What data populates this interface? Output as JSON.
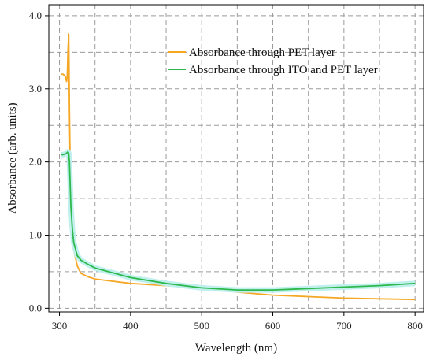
{
  "chart_data": {
    "type": "line",
    "title": "",
    "xlabel": "Wavelength (nm)",
    "ylabel": "Absorbance (arb. units)",
    "xlim": [
      285,
      812
    ],
    "ylim": [
      -0.05,
      4.15
    ],
    "x_ticks": [
      300,
      400,
      500,
      600,
      700,
      800
    ],
    "y_ticks": [
      0.0,
      1.0,
      2.0,
      3.0,
      4.0
    ],
    "x_tick_labels": [
      "300",
      "400",
      "500",
      "600",
      "700",
      "800"
    ],
    "y_tick_labels": [
      "0.0",
      "1.0",
      "2.0",
      "3.0",
      "4.0"
    ],
    "grid": true,
    "legend_position": "top-right",
    "series": [
      {
        "name": "Absorbance through PET layer",
        "color": "#f5a623",
        "x": [
          302,
          305,
          308,
          310,
          311,
          312,
          313,
          313.5,
          314,
          315,
          316,
          318,
          320,
          325,
          330,
          340,
          350,
          400,
          450,
          500,
          550,
          600,
          650,
          700,
          750,
          800
        ],
        "y": [
          3.2,
          3.2,
          3.17,
          3.1,
          3.2,
          3.55,
          3.75,
          3.3,
          2.7,
          2.0,
          1.5,
          1.05,
          0.8,
          0.58,
          0.48,
          0.43,
          0.4,
          0.34,
          0.31,
          0.28,
          0.22,
          0.18,
          0.16,
          0.14,
          0.13,
          0.12
        ]
      },
      {
        "name": "Absorbance through ITO and PET layer",
        "color": "#2eb84b",
        "x": [
          302,
          305,
          308,
          310,
          312,
          313,
          314,
          315,
          316,
          318,
          320,
          325,
          330,
          340,
          350,
          400,
          450,
          500,
          550,
          600,
          650,
          700,
          750,
          800
        ],
        "y": [
          2.1,
          2.1,
          2.11,
          2.12,
          2.14,
          2.12,
          2.0,
          1.7,
          1.4,
          1.1,
          0.9,
          0.72,
          0.66,
          0.6,
          0.55,
          0.42,
          0.34,
          0.28,
          0.25,
          0.25,
          0.27,
          0.29,
          0.31,
          0.34
        ]
      }
    ]
  }
}
